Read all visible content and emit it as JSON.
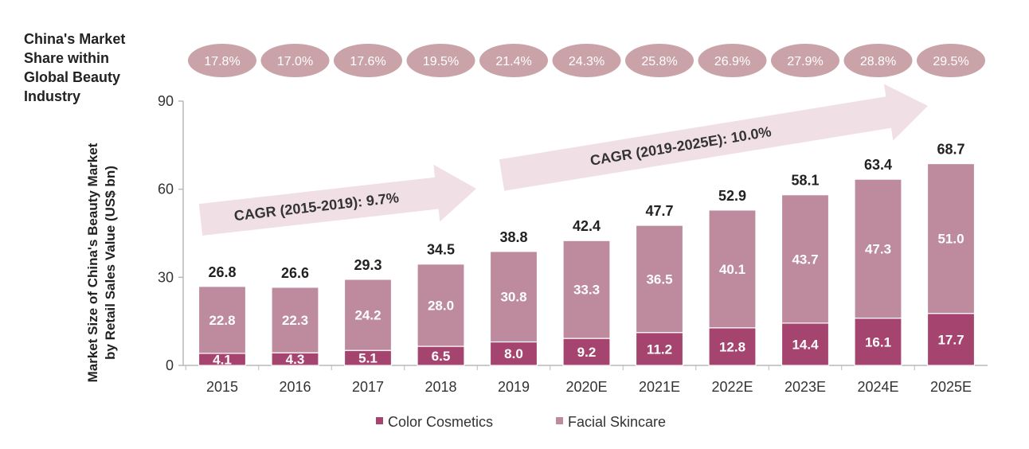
{
  "colors": {
    "color_cosmetics": "#a5456f",
    "facial_skincare": "#bd8b9d",
    "share_pill": "#c9a3a8",
    "arrow": "#f1dfe6",
    "axis": "#b8b8b8"
  },
  "share_title_lines": [
    "China's Market",
    "Share within",
    "Global Beauty",
    "Industry"
  ],
  "ylabel_lines": [
    "Market Size of China's Beauty Market",
    "by Retail Sales Value (US$ bn)"
  ],
  "chart_data": {
    "type": "bar",
    "stacked": true,
    "categories": [
      "2015",
      "2016",
      "2017",
      "2018",
      "2019",
      "2020E",
      "2021E",
      "2022E",
      "2023E",
      "2024E",
      "2025E"
    ],
    "series": [
      {
        "name": "Color Cosmetics",
        "values": [
          4.1,
          4.3,
          5.1,
          6.5,
          8.0,
          9.2,
          11.2,
          12.8,
          14.4,
          16.1,
          17.7
        ]
      },
      {
        "name": "Facial Skincare",
        "values": [
          22.8,
          22.3,
          24.2,
          28.0,
          30.8,
          33.3,
          36.5,
          40.1,
          43.7,
          47.3,
          51.0
        ]
      }
    ],
    "totals": [
      "26.8",
      "26.6",
      "29.3",
      "34.5",
      "38.8",
      "42.4",
      "47.7",
      "52.9",
      "58.1",
      "63.4",
      "68.7"
    ],
    "segment_labels": [
      [
        "4.1",
        "4.3",
        "5.1",
        "6.5",
        "8.0",
        "9.2",
        "11.2",
        "12.8",
        "14.4",
        "16.1",
        "17.7"
      ],
      [
        "22.8",
        "22.3",
        "24.2",
        "28.0",
        "30.8",
        "33.3",
        "36.5",
        "40.1",
        "43.7",
        "47.3",
        "51.0"
      ]
    ],
    "market_share": [
      "17.8%",
      "17.0%",
      "17.6%",
      "19.5%",
      "21.4%",
      "24.3%",
      "25.8%",
      "26.9%",
      "27.9%",
      "28.8%",
      "29.5%"
    ],
    "ylim": [
      0,
      90
    ],
    "yticks": [
      "0",
      "30",
      "60",
      "90"
    ],
    "cagr": [
      {
        "label": "CAGR (2015-2019): 9.7%",
        "from": "2015",
        "to": "2019"
      },
      {
        "label": "CAGR (2019-2025E): 10.0%",
        "from": "2019",
        "to": "2025E"
      }
    ],
    "legend_position": "bottom",
    "grid": false
  }
}
